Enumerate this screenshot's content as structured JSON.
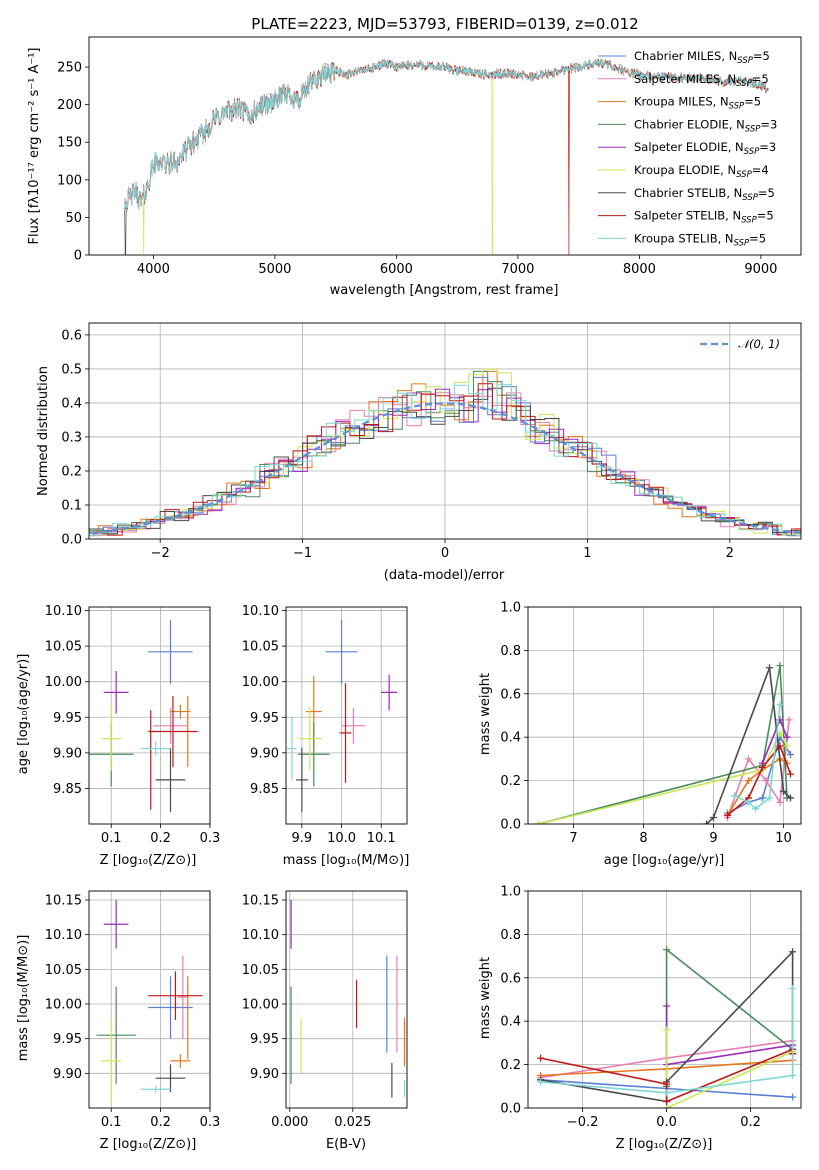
{
  "palette": [
    "#5b7fd8",
    "#e87fb4",
    "#e8771b",
    "#4c8c5c",
    "#9b2bb8",
    "#c9e857",
    "#4a4a4a",
    "#c01818",
    "#7fd6d8"
  ],
  "labels": {
    "title": "PLATE=2223, MJD=53793, FIBERID=0139, z=0.012",
    "spec_xlabel": "wavelength [Angstrom, rest frame]",
    "spec_ylabel": "Flux [fλ10⁻¹⁷ erg cm⁻² s⁻¹ A⁻¹]",
    "hist_xlabel": "(data-model)/error",
    "hist_ylabel": "Normed distribution",
    "hist_gauss": "𝒩(0, 1)",
    "p3_xlabel": "Z [log₁₀(Z/Z⊙)]",
    "p3_ylabel": "age  [log₁₀(age/yr)]",
    "p4_xlabel": "mass [log₁₀(M/M⊙)]",
    "p5_xlabel": "age  [log₁₀(age/yr)]",
    "p5_ylabel": "mass weight",
    "p6_xlabel": "Z [log₁₀(Z/Z⊙)]",
    "p6_ylabel": "mass [log₁₀(M/M⊙)]",
    "p7_xlabel": "E(B-V)",
    "p8_xlabel": "Z [log₁₀(Z/Z⊙)]",
    "p8_ylabel": "mass weight"
  },
  "chart_data": [
    {
      "id": "spectrum",
      "type": "line",
      "title": "PLATE=2223, MJD=53793, FIBERID=0139, z=0.012",
      "xlim": [
        3470,
        9330
      ],
      "ylim": [
        0,
        290
      ],
      "xticks": [
        4000,
        5000,
        6000,
        7000,
        8000,
        9000
      ],
      "yticks": [
        0,
        50,
        100,
        150,
        200,
        250
      ],
      "legend_position": "upper right",
      "legend": [
        "Chabrier MILES, N_SSP=5",
        "Salpeter MILES, N_SSP=5",
        "Kroupa MILES, N_SSP=5",
        "Chabrier ELODIE, N_SSP=3",
        "Salpeter ELODIE, N_SSP=3",
        "Kroupa ELODIE, N_SSP=4",
        "Chabrier STELIB, N_SSP=5",
        "Salpeter STELIB, N_SSP=5",
        "Kroupa STELIB, N_SSP=5"
      ],
      "legend_colors": [
        "#5b7fd8",
        "#e87fb4",
        "#e8771b",
        "#4c8c5c",
        "#9b2bb8",
        "#c9e857",
        "#4a4a4a",
        "#c01818",
        "#7fd6d8"
      ],
      "envelope": {
        "x": [
          3760,
          3800,
          3850,
          3900,
          3950,
          4000,
          4050,
          4100,
          4200,
          4300,
          4400,
          4500,
          4600,
          4700,
          4800,
          4900,
          5000,
          5100,
          5200,
          5300,
          5400,
          5500,
          5600,
          5700,
          5800,
          5900,
          6000,
          6100,
          6200,
          6300,
          6400,
          6500,
          6600,
          6700,
          6800,
          6900,
          7000,
          7100,
          7200,
          7300,
          7400,
          7500,
          7600,
          7700,
          7800,
          7900,
          8000,
          8100,
          8200,
          8300,
          8400,
          8500,
          8600,
          8700,
          8800,
          8900,
          9000,
          9060
        ],
        "y": [
          70,
          75,
          85,
          70,
          90,
          120,
          125,
          120,
          125,
          145,
          160,
          180,
          190,
          195,
          185,
          200,
          205,
          215,
          205,
          230,
          240,
          245,
          240,
          245,
          248,
          255,
          250,
          252,
          253,
          250,
          250,
          245,
          245,
          240,
          240,
          242,
          240,
          237,
          240,
          242,
          248,
          250,
          253,
          255,
          250,
          243,
          240,
          237,
          237,
          236,
          235,
          236,
          233,
          230,
          232,
          230,
          225,
          220
        ]
      },
      "dropouts": [
        {
          "x": 3770,
          "series": 6
        },
        {
          "x": 3920,
          "series": 5
        },
        {
          "x": 6790,
          "series": 5
        },
        {
          "x": 7420,
          "series": 7
        }
      ]
    },
    {
      "id": "residuals",
      "type": "histogram",
      "xlim": [
        -2.5,
        2.5
      ],
      "ylim": [
        0,
        0.635
      ],
      "xticks": [
        -2,
        -1,
        0,
        1,
        2
      ],
      "yticks": [
        0.0,
        0.1,
        0.2,
        0.3,
        0.4,
        0.5,
        0.6
      ],
      "bin_width": 0.1,
      "gauss_label": "𝒩(0, 1)",
      "legend_position": "upper right",
      "grid": true
    },
    {
      "id": "z_age",
      "type": "errorbar",
      "xlim": [
        0.055,
        0.3
      ],
      "ylim": [
        9.8,
        10.105
      ],
      "xticks": [
        0.1,
        0.2,
        0.3
      ],
      "yticks": [
        9.85,
        9.9,
        9.95,
        10.0,
        10.05,
        10.1
      ],
      "points": [
        {
          "c": 0,
          "x": 0.22,
          "xe": 0.045,
          "y": 10.042,
          "ye": 0.045
        },
        {
          "c": 1,
          "x": 0.22,
          "xe": 0.035,
          "y": 9.938,
          "ye": 0.025
        },
        {
          "c": 2,
          "x": 0.24,
          "xe": 0.02,
          "y": 9.958,
          "ye": 0.01
        },
        {
          "c": 2,
          "x": 0.255,
          "xe": 0.0,
          "y": 9.93,
          "ye": 0.05
        },
        {
          "c": 3,
          "x": 0.1,
          "xe": 0.045,
          "y": 9.898,
          "ye": 0.045
        },
        {
          "c": 4,
          "x": 0.11,
          "xe": 0.025,
          "y": 9.985,
          "ye": 0.03
        },
        {
          "c": 5,
          "x": 0.1,
          "xe": 0.02,
          "y": 9.92,
          "ye": 0.045
        },
        {
          "c": 6,
          "x": 0.22,
          "xe": 0.03,
          "y": 9.862,
          "ye": 0.045
        },
        {
          "c": 7,
          "x": 0.225,
          "xe": 0.05,
          "y": 9.93,
          "ye": 0.05
        },
        {
          "c": 7,
          "x": 0.18,
          "xe": 0.0,
          "y": 9.89,
          "ye": 0.07
        },
        {
          "c": 8,
          "x": 0.19,
          "xe": 0.03,
          "y": 9.906,
          "ye": 0.01
        }
      ]
    },
    {
      "id": "mass_age",
      "type": "errorbar",
      "xlim": [
        9.86,
        10.165
      ],
      "ylim": [
        9.8,
        10.105
      ],
      "xticks": [
        9.9,
        10.0,
        10.1
      ],
      "yticks": [
        9.85,
        9.9,
        9.95,
        10.0,
        10.05,
        10.1
      ],
      "points": [
        {
          "c": 0,
          "x": 10.0,
          "xe": 0.04,
          "y": 10.042,
          "ye": 0.045
        },
        {
          "c": 1,
          "x": 10.03,
          "xe": 0.03,
          "y": 9.938,
          "ye": 0.025
        },
        {
          "c": 2,
          "x": 9.93,
          "xe": 0.02,
          "y": 9.958,
          "ye": 0.05
        },
        {
          "c": 3,
          "x": 9.93,
          "xe": 0.04,
          "y": 9.898,
          "ye": 0.045
        },
        {
          "c": 4,
          "x": 10.12,
          "xe": 0.02,
          "y": 9.985,
          "ye": 0.025
        },
        {
          "c": 5,
          "x": 9.92,
          "xe": 0.03,
          "y": 9.92,
          "ye": 0.045
        },
        {
          "c": 6,
          "x": 9.9,
          "xe": 0.015,
          "y": 9.862,
          "ye": 0.045
        },
        {
          "c": 7,
          "x": 10.01,
          "xe": 0.015,
          "y": 9.928,
          "ye": 0.07
        },
        {
          "c": 8,
          "x": 9.875,
          "xe": 0.012,
          "y": 9.906,
          "ye": 0.045
        }
      ]
    },
    {
      "id": "age_weight",
      "type": "line",
      "xlim": [
        6.35,
        10.25
      ],
      "ylim": [
        0,
        1.0
      ],
      "xticks": [
        7,
        8,
        9,
        10
      ],
      "yticks": [
        0.0,
        0.2,
        0.4,
        0.6,
        0.8,
        1.0
      ],
      "series": [
        {
          "c": 0,
          "x": [
            9.2,
            9.5,
            9.7,
            9.95,
            10.1
          ],
          "y": [
            0.05,
            0.1,
            0.12,
            0.4,
            0.32
          ]
        },
        {
          "c": 1,
          "x": [
            9.2,
            9.5,
            9.75,
            9.95,
            10.08
          ],
          "y": [
            0.03,
            0.3,
            0.2,
            0.1,
            0.48
          ]
        },
        {
          "c": 2,
          "x": [
            9.2,
            9.5,
            9.7,
            9.95,
            10.05
          ],
          "y": [
            0.04,
            0.2,
            0.25,
            0.3,
            0.28
          ]
        },
        {
          "c": 3,
          "x": [
            6.5,
            9.7,
            9.95,
            10.05
          ],
          "y": [
            0.0,
            0.27,
            0.73,
            0.12
          ]
        },
        {
          "c": 4,
          "x": [
            9.7,
            9.95,
            10.05
          ],
          "y": [
            0.28,
            0.48,
            0.4
          ]
        },
        {
          "c": 5,
          "x": [
            6.5,
            9.7,
            9.95,
            10.05
          ],
          "y": [
            0.0,
            0.25,
            0.42,
            0.36
          ]
        },
        {
          "c": 6,
          "x": [
            8.9,
            9.0,
            9.8,
            10.0,
            10.1
          ],
          "y": [
            0.0,
            0.03,
            0.72,
            0.15,
            0.12
          ]
        },
        {
          "c": 7,
          "x": [
            9.2,
            9.5,
            9.7,
            9.95,
            10.1
          ],
          "y": [
            0.04,
            0.12,
            0.26,
            0.36,
            0.23
          ]
        },
        {
          "c": 8,
          "x": [
            9.3,
            9.5,
            9.6,
            9.8,
            9.95
          ],
          "y": [
            0.13,
            0.1,
            0.07,
            0.12,
            0.55
          ]
        }
      ]
    },
    {
      "id": "z_mass",
      "type": "errorbar",
      "xlim": [
        0.055,
        0.3
      ],
      "ylim": [
        9.85,
        10.163
      ],
      "xticks": [
        0.1,
        0.2,
        0.3
      ],
      "yticks": [
        9.9,
        9.95,
        10.0,
        10.05,
        10.1,
        10.15
      ],
      "points": [
        {
          "c": 0,
          "x": 0.22,
          "xe": 0.045,
          "y": 9.995,
          "ye": 0.045
        },
        {
          "c": 1,
          "x": 0.245,
          "xe": 0.01,
          "y": 10.01,
          "ye": 0.06
        },
        {
          "c": 2,
          "x": 0.24,
          "xe": 0.02,
          "y": 9.918,
          "ye": 0.01
        },
        {
          "c": 2,
          "x": 0.255,
          "xe": 0.0,
          "y": 9.98,
          "ye": 0.06
        },
        {
          "c": 3,
          "x": 0.11,
          "xe": 0.04,
          "y": 9.955,
          "ye": 0.07
        },
        {
          "c": 4,
          "x": 0.11,
          "xe": 0.025,
          "y": 10.115,
          "ye": 0.035
        },
        {
          "c": 5,
          "x": 0.1,
          "xe": 0.02,
          "y": 9.918,
          "ye": 0.06
        },
        {
          "c": 6,
          "x": 0.22,
          "xe": 0.03,
          "y": 9.893,
          "ye": 0.02
        },
        {
          "c": 7,
          "x": 0.23,
          "xe": 0.055,
          "y": 10.012,
          "ye": 0.035
        },
        {
          "c": 8,
          "x": 0.19,
          "xe": 0.03,
          "y": 9.877,
          "ye": 0.005
        }
      ]
    },
    {
      "id": "ebv_mass",
      "type": "errorbar",
      "xlim": [
        -0.0015,
        0.0465
      ],
      "ylim": [
        9.85,
        10.163
      ],
      "xticks": [
        0.0,
        0.025
      ],
      "yticks": [
        9.9,
        9.95,
        10.0,
        10.05,
        10.1,
        10.15
      ],
      "points": [
        {
          "c": 0,
          "x": 0.0385,
          "xe": 0,
          "y": 10.0,
          "ye": 0.07
        },
        {
          "c": 1,
          "x": 0.0425,
          "xe": 0,
          "y": 10.0,
          "ye": 0.07
        },
        {
          "c": 2,
          "x": 0.0455,
          "xe": 0,
          "y": 9.945,
          "ye": 0.035
        },
        {
          "c": 3,
          "x": 0.0005,
          "xe": 0,
          "y": 9.955,
          "ye": 0.07
        },
        {
          "c": 4,
          "x": 0.0005,
          "xe": 0,
          "y": 10.115,
          "ye": 0.035
        },
        {
          "c": 5,
          "x": 0.0045,
          "xe": 0,
          "y": 9.94,
          "ye": 0.04
        },
        {
          "c": 6,
          "x": 0.0405,
          "xe": 0,
          "y": 9.89,
          "ye": 0.025
        },
        {
          "c": 7,
          "x": 0.0265,
          "xe": 0,
          "y": 10.0,
          "ye": 0.035
        },
        {
          "c": 8,
          "x": 0.0455,
          "xe": 0,
          "y": 9.878,
          "ye": 0.012
        }
      ]
    },
    {
      "id": "z_weight",
      "type": "line",
      "xlim": [
        -0.33,
        0.32
      ],
      "ylim": [
        0,
        1.0
      ],
      "xticks": [
        -0.2,
        0.0,
        0.2
      ],
      "yticks": [
        0.0,
        0.2,
        0.4,
        0.6,
        0.8,
        1.0
      ],
      "series": [
        {
          "c": 0,
          "x": [
            -0.3,
            0.0,
            0.3
          ],
          "y": [
            0.13,
            0.09,
            0.05
          ]
        },
        {
          "c": 1,
          "x": [
            -0.3,
            0.0,
            0.3
          ],
          "y": [
            0.14,
            0.23,
            0.31
          ]
        },
        {
          "c": 2,
          "x": [
            -0.3,
            0.0,
            0.3
          ],
          "y": [
            0.15,
            0.18,
            0.22
          ]
        },
        {
          "c": 3,
          "x": [
            0.0,
            0.0,
            0.3
          ],
          "y": [
            0.1,
            0.73,
            0.27
          ]
        },
        {
          "c": 4,
          "x": [
            0.0,
            0.0,
            0.3
          ],
          "y": [
            0.47,
            0.2,
            0.29
          ]
        },
        {
          "c": 5,
          "x": [
            0.0,
            0.0,
            0.3
          ],
          "y": [
            0.36,
            0.0,
            0.26
          ]
        },
        {
          "c": 6,
          "x": [
            -0.3,
            0.0,
            0.0,
            0.3,
            0.3
          ],
          "y": [
            0.13,
            0.03,
            0.12,
            0.72,
            0.25
          ]
        },
        {
          "c": 7,
          "x": [
            -0.3,
            0.0,
            0.0,
            0.3,
            0.3
          ],
          "y": [
            0.23,
            0.11,
            0.03,
            0.27,
            0.25
          ]
        },
        {
          "c": 8,
          "x": [
            -0.3,
            0.0,
            0.3,
            0.3
          ],
          "y": [
            0.12,
            0.07,
            0.15,
            0.55
          ]
        }
      ]
    }
  ]
}
